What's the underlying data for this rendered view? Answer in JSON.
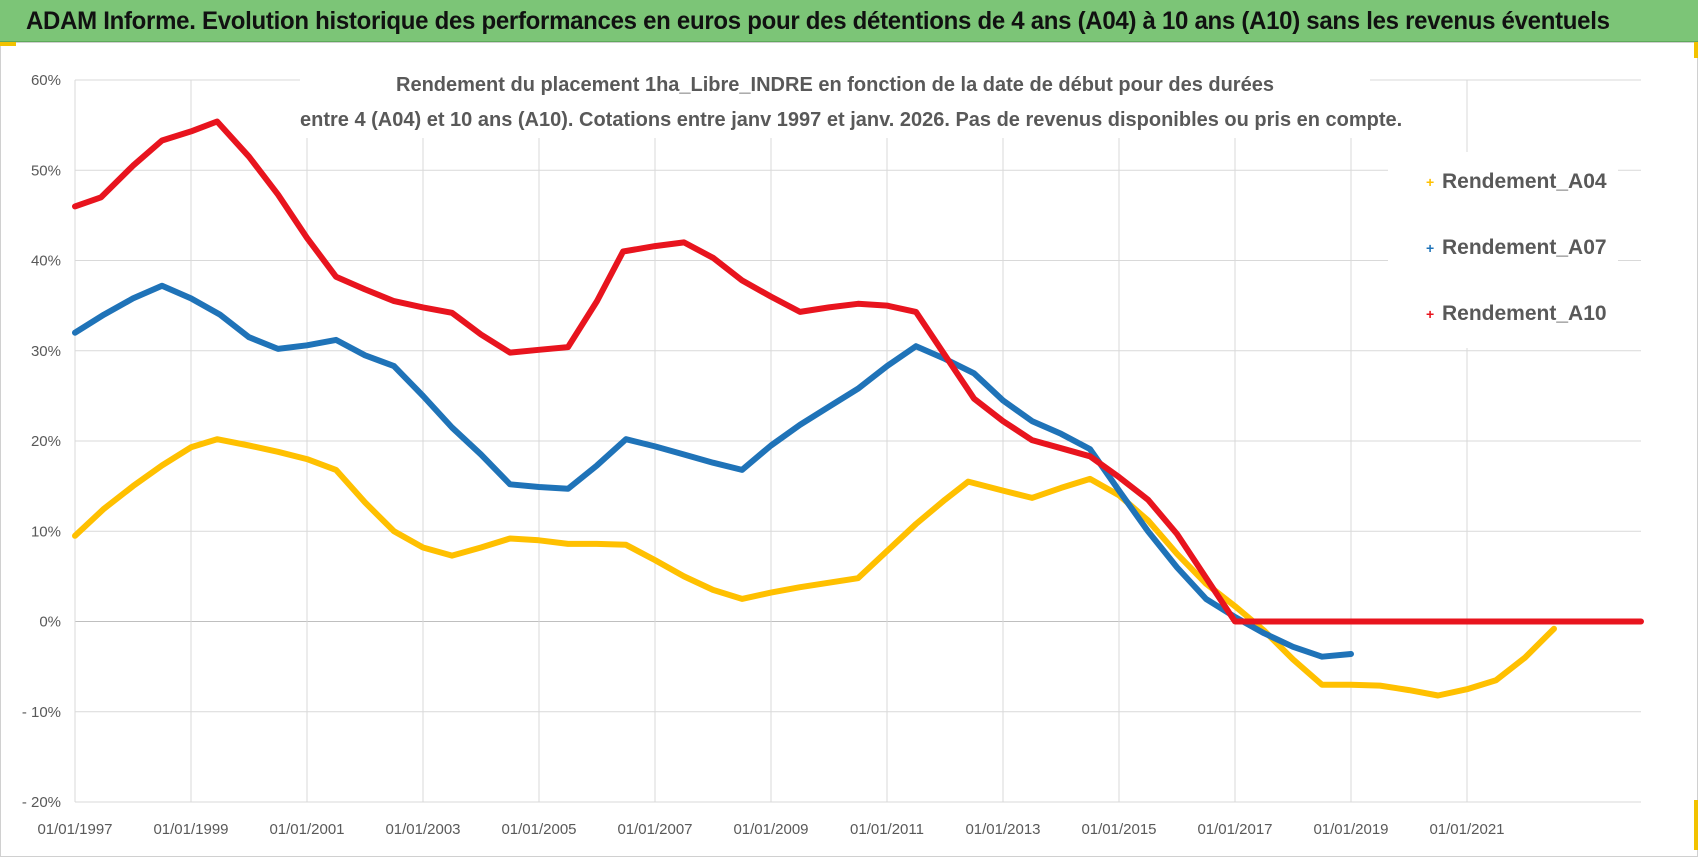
{
  "header": {
    "title": "ADAM Informe. Evolution historique des performances en euros pour des détentions de 4 ans (A04) à 10 ans (A10) sans les revenus éventuels"
  },
  "colors": {
    "banner": "#7cc577",
    "accent_corner": "#f2c200",
    "gridline": "#d9d9d9",
    "axis_text": "#595959"
  },
  "chart_data": {
    "type": "line",
    "title_line1": "Rendement du placement 1ha_Libre_INDRE en fonction de la date de début pour des durées",
    "title_line2": "entre 4 (A04) et 10 ans (A10).  Cotations entre janv 1997 et janv. 2026. Pas de revenus disponibles ou pris en compte.",
    "xlabel": "",
    "ylabel": "",
    "xlim": [
      1997.0,
      2024.0
    ],
    "ylim": [
      -20,
      60
    ],
    "y_ticks": [
      60,
      50,
      40,
      30,
      20,
      10,
      0,
      -10,
      -20
    ],
    "y_tick_labels": [
      "60%",
      "50%",
      "40%",
      "30%",
      "20%",
      "10%",
      "0%",
      "- 10%",
      "- 20%"
    ],
    "x_ticks": [
      1997,
      1999,
      2001,
      2003,
      2005,
      2007,
      2009,
      2011,
      2013,
      2015,
      2017,
      2019,
      2021
    ],
    "x_tick_labels": [
      "01/01/1997",
      "01/01/1999",
      "01/01/2001",
      "01/01/2003",
      "01/01/2005",
      "01/01/2007",
      "01/01/2009",
      "01/01/2011",
      "01/01/2013",
      "01/01/2015",
      "01/01/2017",
      "01/01/2019",
      "01/01/2021"
    ],
    "legend_position": "right",
    "series": [
      {
        "name": "Rendement_A04",
        "color": "#ffc000",
        "x": [
          1997.0,
          1997.5,
          1998.0,
          1998.5,
          1999.0,
          1999.45,
          2000.0,
          2000.5,
          2001.0,
          2001.5,
          2002.0,
          2002.5,
          2003.0,
          2003.5,
          2004.0,
          2004.5,
          2005.0,
          2005.5,
          2006.0,
          2006.5,
          2007.0,
          2007.5,
          2008.0,
          2008.5,
          2009.0,
          2009.5,
          2010.0,
          2010.5,
          2011.0,
          2011.5,
          2012.0,
          2012.4,
          2013.0,
          2013.5,
          2014.0,
          2014.5,
          2015.0,
          2015.5,
          2016.0,
          2016.5,
          2017.0,
          2017.5,
          2018.0,
          2018.5,
          2019.0,
          2019.5,
          2020.0,
          2020.5,
          2021.0,
          2021.5,
          2022.0,
          2022.5
        ],
        "values": [
          9.5,
          12.5,
          15.0,
          17.3,
          19.3,
          20.2,
          19.5,
          18.8,
          18.0,
          16.8,
          13.2,
          10.0,
          8.2,
          7.3,
          8.2,
          9.2,
          9.0,
          8.6,
          8.6,
          8.5,
          6.8,
          5.0,
          3.5,
          2.5,
          3.2,
          3.8,
          4.3,
          4.8,
          7.8,
          10.8,
          13.5,
          15.5,
          14.5,
          13.7,
          14.8,
          15.8,
          14.0,
          11.2,
          7.5,
          4.2,
          1.7,
          -1.0,
          -4.2,
          -7.0,
          -7.0,
          -7.1,
          -7.6,
          -8.2,
          -7.5,
          -6.5,
          -4.0,
          -0.8
        ]
      },
      {
        "name": "Rendement_A07",
        "color": "#1f73b8",
        "x": [
          1997.0,
          1997.5,
          1998.0,
          1998.5,
          1999.0,
          1999.5,
          2000.0,
          2000.5,
          2001.0,
          2001.5,
          2002.0,
          2002.5,
          2003.0,
          2003.5,
          2004.0,
          2004.5,
          2005.0,
          2005.5,
          2006.0,
          2006.5,
          2007.0,
          2007.5,
          2008.0,
          2008.5,
          2009.0,
          2009.5,
          2010.0,
          2010.5,
          2011.0,
          2011.5,
          2012.0,
          2012.5,
          2013.0,
          2013.5,
          2014.0,
          2014.5,
          2015.0,
          2015.5,
          2016.0,
          2016.5,
          2017.0,
          2017.5,
          2018.0,
          2018.5,
          2019.0
        ],
        "values": [
          32.0,
          34.0,
          35.8,
          37.2,
          35.8,
          34.0,
          31.5,
          30.2,
          30.6,
          31.2,
          29.5,
          28.3,
          25.0,
          21.5,
          18.5,
          15.2,
          14.9,
          14.7,
          17.3,
          20.2,
          19.4,
          18.5,
          17.6,
          16.8,
          19.5,
          21.8,
          23.8,
          25.8,
          28.3,
          30.5,
          29.1,
          27.5,
          24.5,
          22.2,
          20.8,
          19.1,
          14.5,
          10.0,
          6.0,
          2.5,
          0.5,
          -1.3,
          -2.8,
          -3.9,
          -3.6
        ]
      },
      {
        "name": "Rendement_A10",
        "color": "#e8141e",
        "x": [
          1997.0,
          1997.45,
          1998.0,
          1998.5,
          1999.0,
          1999.45,
          2000.0,
          2000.5,
          2001.0,
          2001.5,
          2002.0,
          2002.5,
          2003.0,
          2003.5,
          2004.0,
          2004.5,
          2005.0,
          2005.5,
          2006.0,
          2006.45,
          2007.0,
          2007.5,
          2008.0,
          2008.5,
          2009.0,
          2009.5,
          2010.0,
          2010.5,
          2011.0,
          2011.5,
          2012.0,
          2012.5,
          2013.0,
          2013.5,
          2014.0,
          2014.5,
          2015.0,
          2015.5,
          2016.0,
          2017.0,
          2018.0,
          2019.0,
          2020.0,
          2021.0,
          2022.0,
          2023.0,
          2024.0
        ],
        "values": [
          46.0,
          47.0,
          50.5,
          53.3,
          54.3,
          55.4,
          51.5,
          47.3,
          42.5,
          38.2,
          36.8,
          35.5,
          34.8,
          34.2,
          31.8,
          29.8,
          30.1,
          30.4,
          35.5,
          41.0,
          41.6,
          42.0,
          40.3,
          37.8,
          36.0,
          34.3,
          34.8,
          35.2,
          35.0,
          34.3,
          29.5,
          24.7,
          22.2,
          20.1,
          19.2,
          18.3,
          16.0,
          13.5,
          9.7,
          0.0,
          0.0,
          0.0,
          0.0,
          0.0,
          0.0,
          0.0,
          0.0
        ]
      }
    ]
  }
}
